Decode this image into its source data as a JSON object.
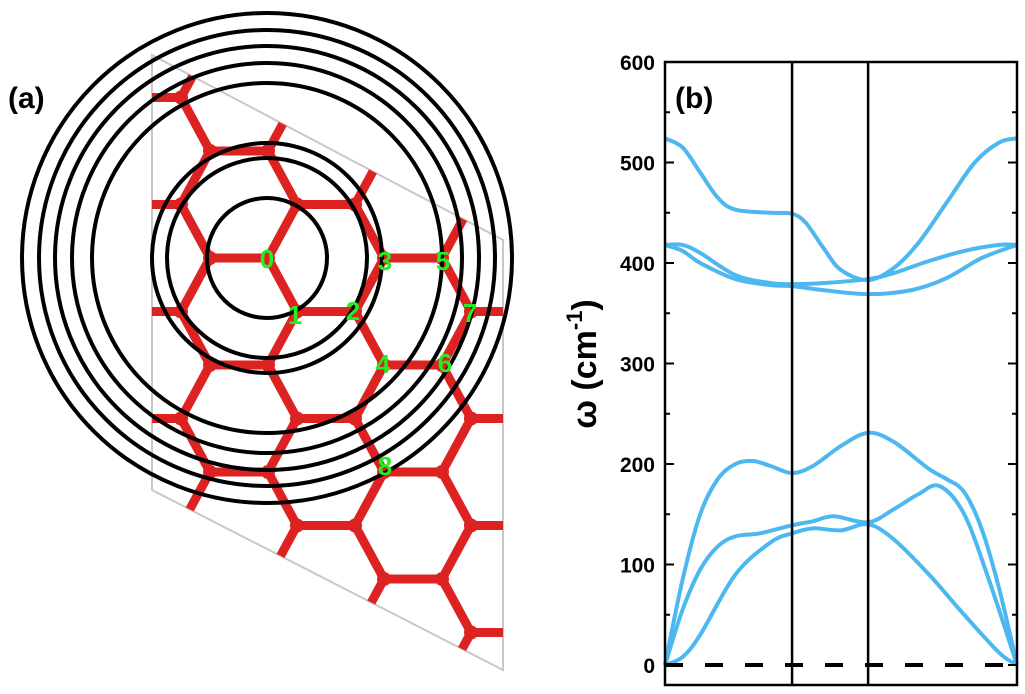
{
  "panel_a": {
    "label": "(a)",
    "site_labels": [
      "0",
      "1",
      "2",
      "3",
      "4",
      "5",
      "6",
      "7",
      "8"
    ],
    "colors": {
      "atoms": "#dd2222",
      "circles": "#000000",
      "labels": "#22ee22",
      "cell": "#c8c8c8"
    }
  },
  "chart_data": {
    "type": "line",
    "panel_label": "(b)",
    "ylabel": "ω (cm",
    "ylabel_sup": "-1",
    "ylabel_close": ")",
    "ylim": [
      0,
      600
    ],
    "yticks": [
      "0",
      "100",
      "200",
      "300",
      "400",
      "500",
      "600"
    ],
    "xlim": [
      0,
      1
    ],
    "high_symmetry_x": [
      0.361,
      0.577
    ],
    "grid": false,
    "line_color": "#4db8ef",
    "zero_line": {
      "value": 0,
      "style": "dashed"
    },
    "series": [
      {
        "x": [
          0,
          0.05,
          0.1,
          0.15,
          0.2,
          0.3,
          0.361,
          0.4,
          0.45,
          0.5,
          0.577,
          0.65,
          0.72,
          0.8,
          0.88,
          0.95,
          1
        ],
        "y": [
          524,
          515,
          490,
          465,
          453,
          450,
          449,
          440,
          415,
          393,
          383,
          395,
          420,
          460,
          500,
          520,
          524
        ]
      },
      {
        "x": [
          0,
          0.05,
          0.1,
          0.2,
          0.3,
          0.361,
          0.45,
          0.577,
          0.65,
          0.75,
          0.85,
          0.95,
          1
        ],
        "y": [
          418,
          418,
          410,
          388,
          380,
          379,
          380,
          384,
          390,
          402,
          412,
          418,
          418
        ]
      },
      {
        "x": [
          0,
          0.05,
          0.1,
          0.2,
          0.3,
          0.361,
          0.45,
          0.577,
          0.7,
          0.8,
          0.9,
          1
        ],
        "y": [
          418,
          412,
          400,
          384,
          378,
          377,
          373,
          369,
          373,
          385,
          405,
          418
        ]
      },
      {
        "x": [
          0,
          0.05,
          0.1,
          0.15,
          0.2,
          0.25,
          0.3,
          0.361,
          0.42,
          0.5,
          0.577,
          0.65,
          0.75,
          0.8,
          0.85,
          0.9,
          0.95,
          1
        ],
        "y": [
          0,
          85,
          150,
          185,
          200,
          203,
          198,
          191,
          198,
          218,
          231,
          222,
          195,
          185,
          172,
          135,
          75,
          0
        ]
      },
      {
        "x": [
          0,
          0.05,
          0.1,
          0.15,
          0.2,
          0.27,
          0.361,
          0.42,
          0.48,
          0.577,
          0.65,
          0.72,
          0.78,
          0.85,
          0.92,
          1
        ],
        "y": [
          0,
          55,
          95,
          118,
          128,
          131,
          139,
          143,
          148,
          142,
          155,
          170,
          178,
          150,
          85,
          0
        ]
      },
      {
        "x": [
          0,
          0.05,
          0.1,
          0.2,
          0.3,
          0.361,
          0.42,
          0.5,
          0.577,
          0.65,
          0.75,
          0.85,
          0.95,
          1
        ],
        "y": [
          0,
          8,
          30,
          90,
          122,
          131,
          136,
          134,
          140,
          125,
          90,
          50,
          12,
          0
        ]
      }
    ]
  }
}
